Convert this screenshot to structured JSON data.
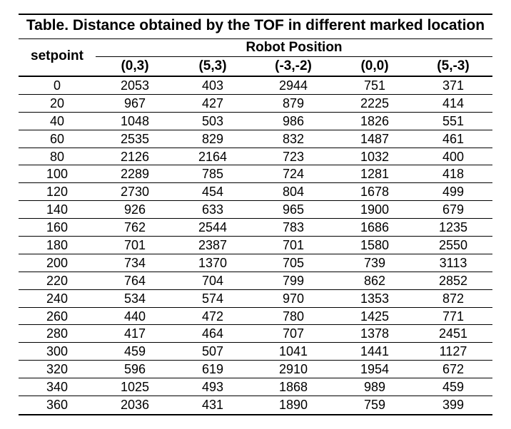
{
  "table": {
    "title": "Table. Distance obtained by the TOF in different marked location",
    "row_header": "setpoint",
    "group_header": "Robot Position",
    "columns": [
      "(0,3)",
      "(5,3)",
      "(-3,-2)",
      "(0,0)",
      "(5,-3)"
    ],
    "rows": [
      [
        "0",
        "2053",
        "403",
        "2944",
        "751",
        "371"
      ],
      [
        "20",
        "967",
        "427",
        "879",
        "2225",
        "414"
      ],
      [
        "40",
        "1048",
        "503",
        "986",
        "1826",
        "551"
      ],
      [
        "60",
        "2535",
        "829",
        "832",
        "1487",
        "461"
      ],
      [
        "80",
        "2126",
        "2164",
        "723",
        "1032",
        "400"
      ],
      [
        "100",
        "2289",
        "785",
        "724",
        "1281",
        "418"
      ],
      [
        "120",
        "2730",
        "454",
        "804",
        "1678",
        "499"
      ],
      [
        "140",
        "926",
        "633",
        "965",
        "1900",
        "679"
      ],
      [
        "160",
        "762",
        "2544",
        "783",
        "1686",
        "1235"
      ],
      [
        "180",
        "701",
        "2387",
        "701",
        "1580",
        "2550"
      ],
      [
        "200",
        "734",
        "1370",
        "705",
        "739",
        "3113"
      ],
      [
        "220",
        "764",
        "704",
        "799",
        "862",
        "2852"
      ],
      [
        "240",
        "534",
        "574",
        "970",
        "1353",
        "872"
      ],
      [
        "260",
        "440",
        "472",
        "780",
        "1425",
        "771"
      ],
      [
        "280",
        "417",
        "464",
        "707",
        "1378",
        "2451"
      ],
      [
        "300",
        "459",
        "507",
        "1041",
        "1441",
        "1127"
      ],
      [
        "320",
        "596",
        "619",
        "2910",
        "1954",
        "672"
      ],
      [
        "340",
        "1025",
        "493",
        "1868",
        "989",
        "459"
      ],
      [
        "360",
        "2036",
        "431",
        "1890",
        "759",
        "399"
      ]
    ]
  }
}
